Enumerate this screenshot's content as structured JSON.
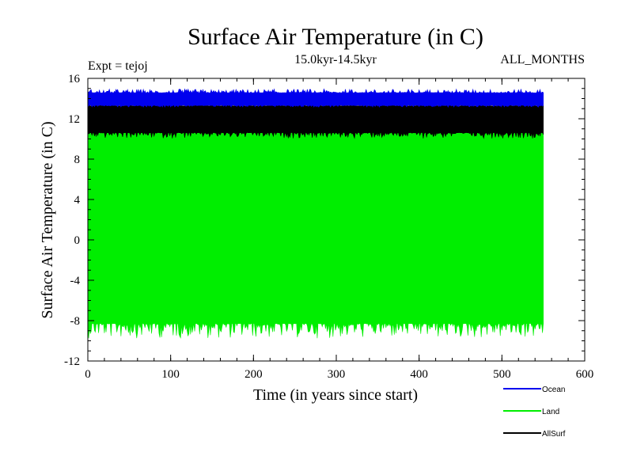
{
  "chart_data": {
    "type": "line",
    "title": "Surface Air Temperature (in C)",
    "subtitle": "15.0kyr-14.5kyr",
    "expt_label": "Expt = tejoj",
    "months_label": "ALL_MONTHS",
    "xlabel": "Time (in years since start)",
    "ylabel": "Surface Air Temperature (in C)",
    "xlim": [
      0,
      600
    ],
    "ylim": [
      -12,
      16
    ],
    "x_ticks": [
      0,
      100,
      200,
      300,
      400,
      500,
      600
    ],
    "y_ticks": [
      -12,
      -8,
      -4,
      0,
      4,
      8,
      12,
      16
    ],
    "x_tick_labels": [
      "0",
      "100",
      "200",
      "300",
      "400",
      "500",
      "600"
    ],
    "y_tick_labels": [
      "-12",
      "-8",
      "-4",
      "0",
      "4",
      "8",
      "12",
      "16"
    ],
    "data_x_range": [
      0,
      550
    ],
    "series": [
      {
        "name": "Land",
        "color": "#00ee00",
        "band_low": -8.3,
        "band_high": 10.6,
        "low_min": -9.9,
        "high_max": 11.3
      },
      {
        "name": "AllSurf",
        "color": "#000000",
        "band_low": 10.6,
        "band_high": 13.3,
        "low_min": 9.9,
        "high_max": 13.6
      },
      {
        "name": "Ocean",
        "color": "#0000ee",
        "band_low": 13.3,
        "band_high": 14.6,
        "low_min": 13.0,
        "high_max": 15.1
      }
    ],
    "legend": [
      {
        "name": "Ocean",
        "color": "#0000ee"
      },
      {
        "name": "Land",
        "color": "#00ee00"
      },
      {
        "name": "AllSurf",
        "color": "#000000"
      }
    ],
    "legend_position": "bottom-right"
  }
}
